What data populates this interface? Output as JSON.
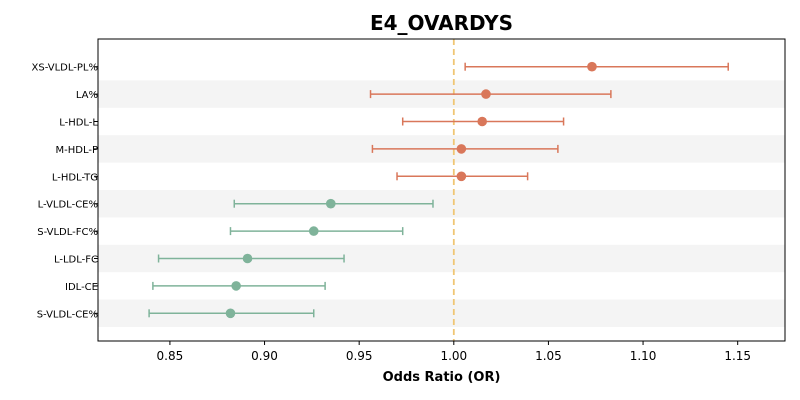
{
  "chart_data": {
    "type": "forest",
    "title": "E4_OVARDYS",
    "xlabel": "Odds Ratio (OR)",
    "ylabel": "",
    "xlim": [
      0.812,
      1.175
    ],
    "xticks": [
      0.85,
      0.9,
      0.95,
      1.0,
      1.05,
      1.1,
      1.15
    ],
    "xtick_labels": [
      "0.85",
      "0.90",
      "0.95",
      "1.00",
      "1.05",
      "1.10",
      "1.15"
    ],
    "reference_line": 1.0,
    "reference_line_color": "#f0c674",
    "colors": {
      "positive": "#d9775a",
      "negative": "#7fb39a",
      "band": "#f4f4f4"
    },
    "grid": false,
    "rows": [
      {
        "label": "XS-VLDL-PL%",
        "or": 1.073,
        "lo": 1.006,
        "hi": 1.145
      },
      {
        "label": "LA%",
        "or": 1.017,
        "lo": 0.956,
        "hi": 1.083
      },
      {
        "label": "L-HDL-L",
        "or": 1.015,
        "lo": 0.973,
        "hi": 1.058
      },
      {
        "label": "M-HDL-P",
        "or": 1.004,
        "lo": 0.957,
        "hi": 1.055
      },
      {
        "label": "L-HDL-TG",
        "or": 1.004,
        "lo": 0.97,
        "hi": 1.039
      },
      {
        "label": "L-VLDL-CE%",
        "or": 0.935,
        "lo": 0.884,
        "hi": 0.989
      },
      {
        "label": "S-VLDL-FC%",
        "or": 0.926,
        "lo": 0.882,
        "hi": 0.973
      },
      {
        "label": "L-LDL-FC",
        "or": 0.891,
        "lo": 0.844,
        "hi": 0.942
      },
      {
        "label": "IDL-CE",
        "or": 0.885,
        "lo": 0.841,
        "hi": 0.932
      },
      {
        "label": "S-VLDL-CE%",
        "or": 0.882,
        "lo": 0.839,
        "hi": 0.926
      }
    ]
  }
}
